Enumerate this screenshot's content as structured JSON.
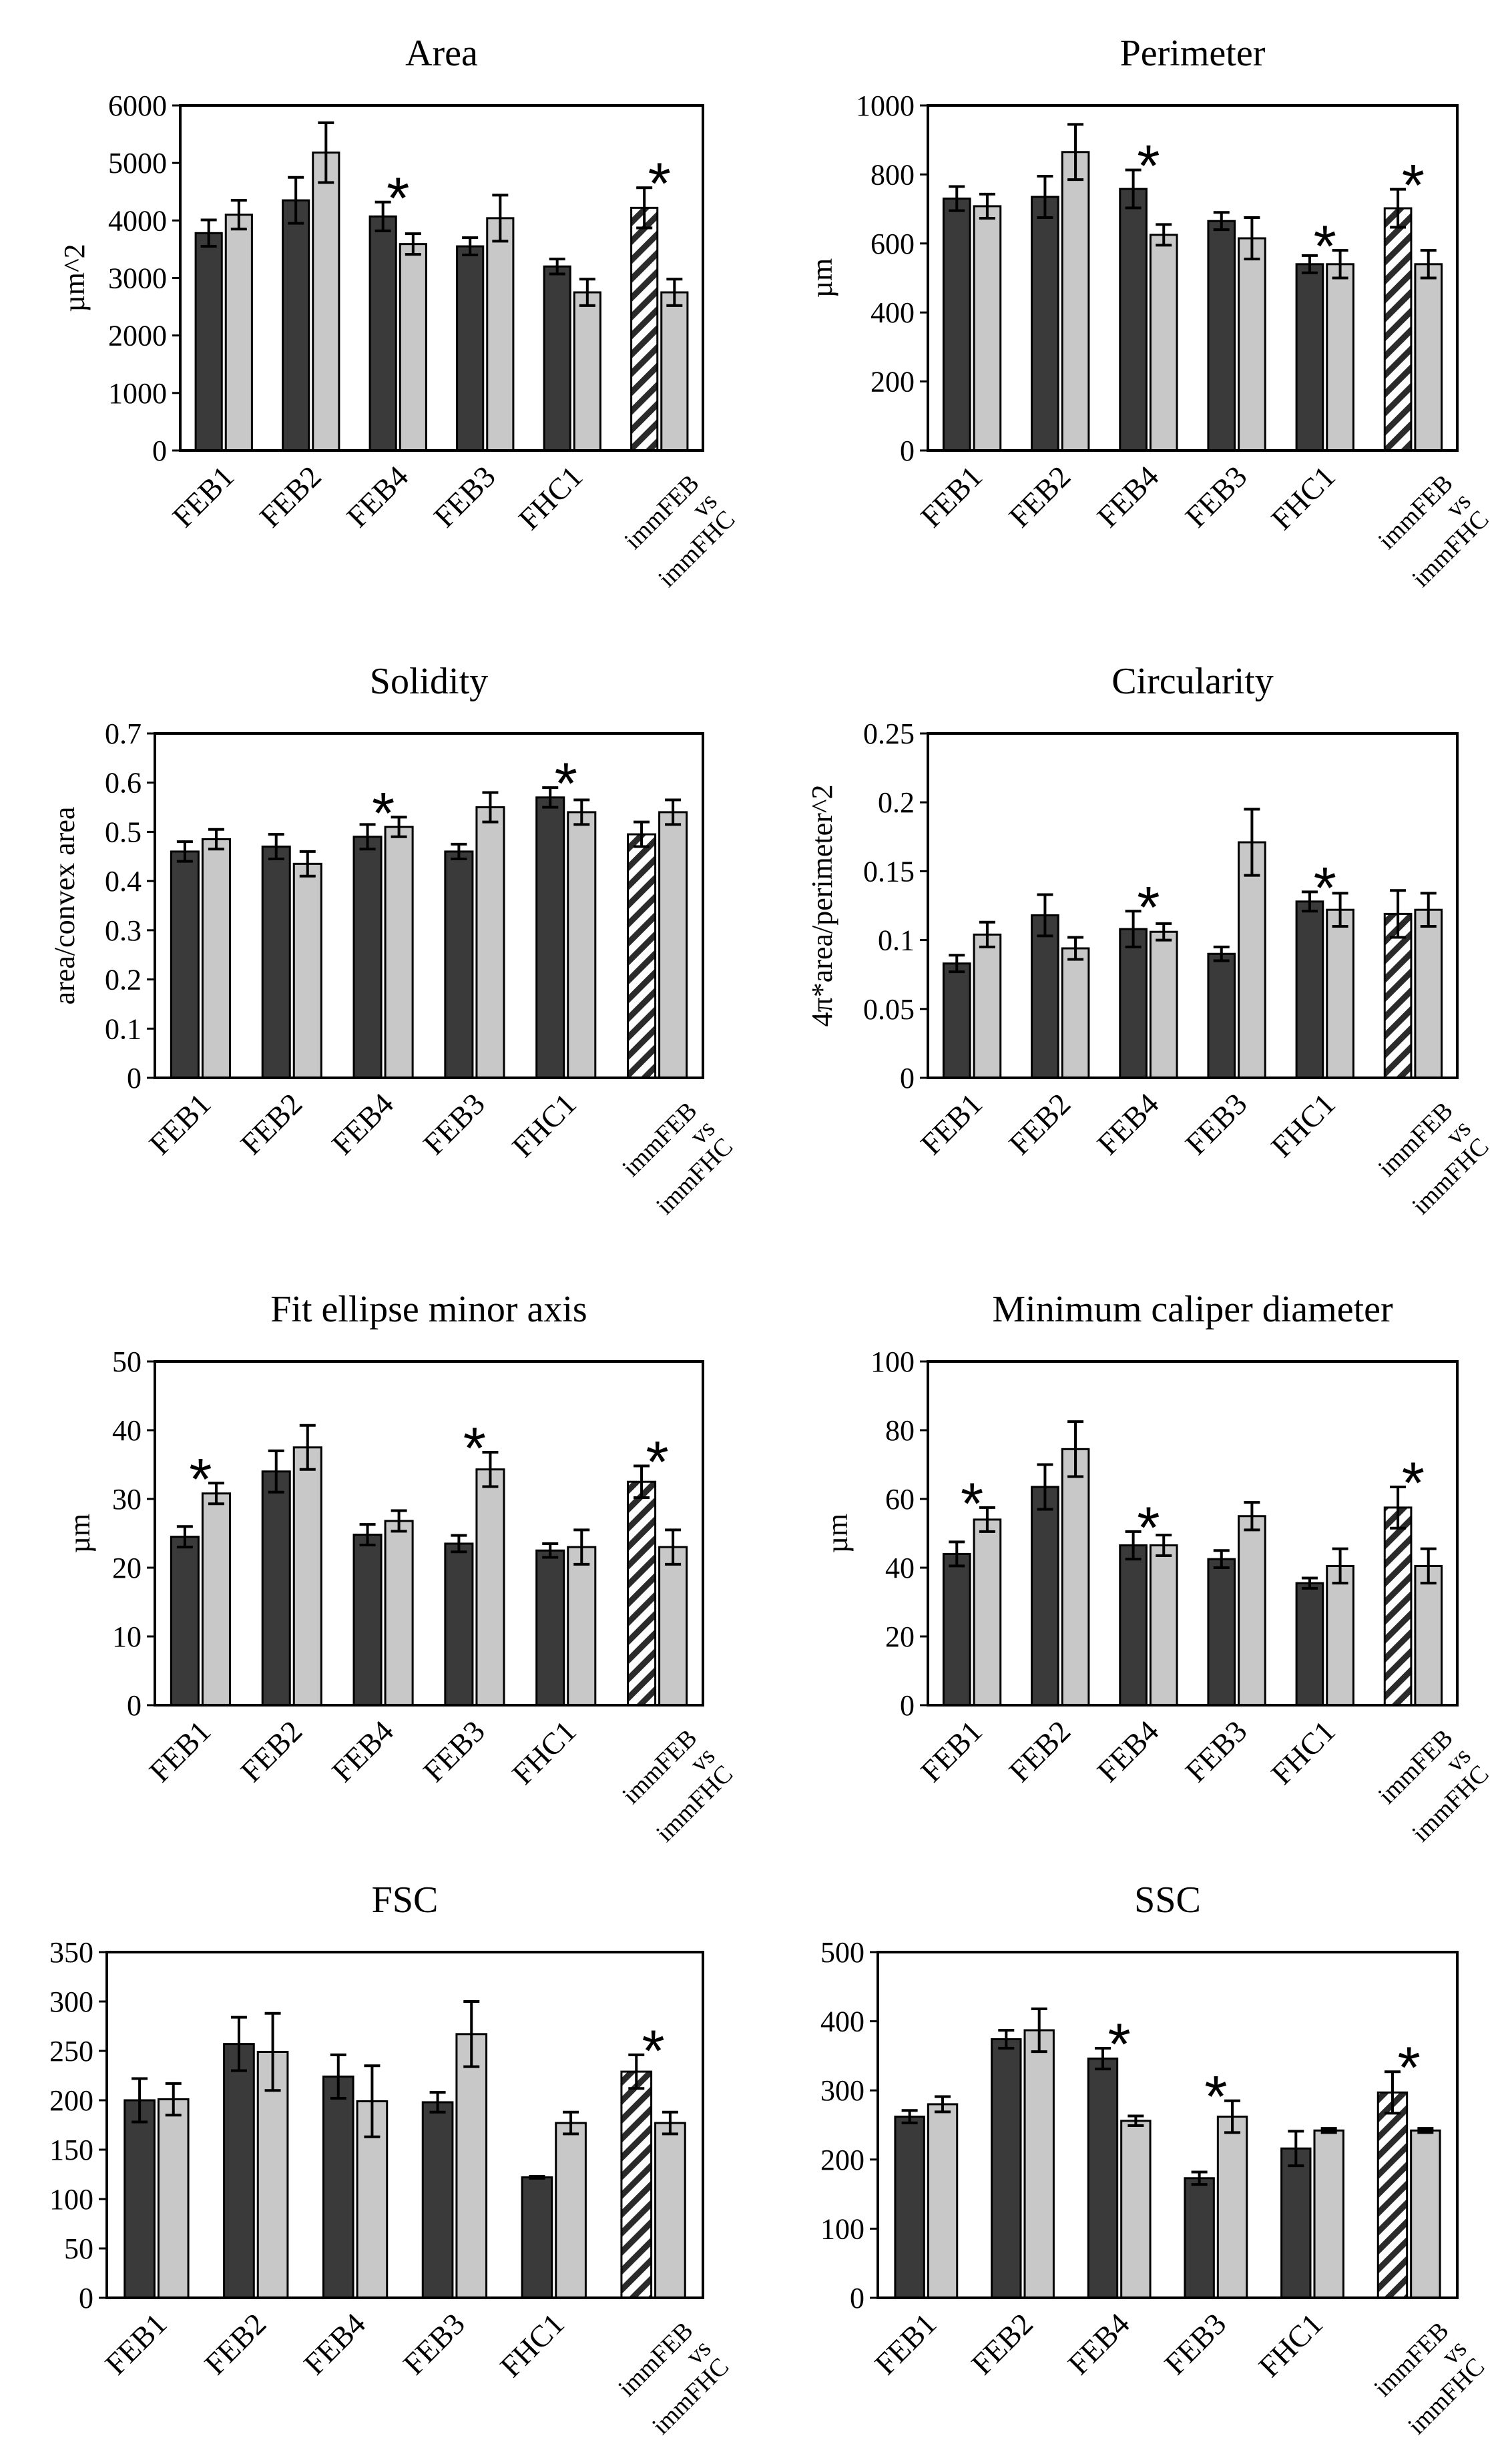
{
  "colors": {
    "dark": "#3a3a3a",
    "light": "#c8c8c8",
    "hatch": "#2a2a2a",
    "axis": "#000000"
  },
  "chart_data": [
    {
      "type": "bar",
      "title": "Area",
      "ylabel": "µm^2",
      "ylim": [
        0,
        6000
      ],
      "yticks": [
        "0",
        "1000",
        "2000",
        "3000",
        "4000",
        "5000",
        "6000"
      ],
      "categories": [
        "FEB1",
        "FEB2",
        "FEB4",
        "FEB3",
        "FHC1",
        "immFEB vs immFHC"
      ],
      "series": [
        {
          "name": "dark",
          "values": [
            3780,
            4350,
            4070,
            3550,
            3200,
            4220
          ],
          "errors": [
            230,
            400,
            250,
            150,
            130,
            350
          ]
        },
        {
          "name": "light",
          "values": [
            4100,
            5180,
            3590,
            4040,
            2750,
            2750
          ],
          "errors": [
            250,
            520,
            180,
            400,
            230,
            230
          ]
        }
      ],
      "hatched": [
        false,
        false,
        false,
        false,
        false,
        true
      ],
      "stars": [
        false,
        false,
        true,
        false,
        false,
        true
      ]
    },
    {
      "type": "bar",
      "title": "Perimeter",
      "ylabel": "µm",
      "ylim": [
        0,
        1000
      ],
      "yticks": [
        "0",
        "200",
        "400",
        "600",
        "800",
        "1000"
      ],
      "categories": [
        "FEB1",
        "FEB2",
        "FEB4",
        "FEB3",
        "FHC1",
        "immFEB vs immFHC"
      ],
      "series": [
        {
          "name": "dark",
          "values": [
            730,
            735,
            758,
            665,
            540,
            702
          ],
          "errors": [
            35,
            60,
            55,
            25,
            25,
            55
          ]
        },
        {
          "name": "light",
          "values": [
            708,
            865,
            625,
            615,
            540,
            540
          ],
          "errors": [
            35,
            80,
            30,
            60,
            40,
            40
          ]
        }
      ],
      "hatched": [
        false,
        false,
        false,
        false,
        false,
        true
      ],
      "stars": [
        false,
        false,
        true,
        false,
        true,
        true
      ]
    },
    {
      "type": "bar",
      "title": "Solidity",
      "ylabel": "area/convex area",
      "ylim": [
        0,
        0.7
      ],
      "yticks": [
        "0",
        "0.1",
        "0.2",
        "0.3",
        "0.4",
        "0.5",
        "0.6",
        "0.7"
      ],
      "categories": [
        "FEB1",
        "FEB2",
        "FEB4",
        "FEB3",
        "FHC1",
        "immFEB vs immFHC"
      ],
      "series": [
        {
          "name": "dark",
          "values": [
            0.46,
            0.47,
            0.49,
            0.46,
            0.57,
            0.495
          ],
          "errors": [
            0.02,
            0.025,
            0.025,
            0.015,
            0.02,
            0.025
          ]
        },
        {
          "name": "light",
          "values": [
            0.485,
            0.435,
            0.51,
            0.55,
            0.54,
            0.54
          ],
          "errors": [
            0.02,
            0.025,
            0.02,
            0.03,
            0.025,
            0.025
          ]
        }
      ],
      "hatched": [
        false,
        false,
        false,
        false,
        false,
        true
      ],
      "stars": [
        false,
        false,
        true,
        false,
        true,
        false
      ]
    },
    {
      "type": "bar",
      "title": "Circularity",
      "ylabel": "4π*area/perimeter^2",
      "ylim": [
        0,
        0.25
      ],
      "yticks": [
        "0",
        "0.05",
        "0.1",
        "0.15",
        "0.2",
        "0.25"
      ],
      "categories": [
        "FEB1",
        "FEB2",
        "FEB4",
        "FEB3",
        "FHC1",
        "immFEB vs immFHC"
      ],
      "series": [
        {
          "name": "dark",
          "values": [
            0.083,
            0.118,
            0.108,
            0.09,
            0.128,
            0.119
          ],
          "errors": [
            0.006,
            0.015,
            0.013,
            0.005,
            0.007,
            0.017
          ]
        },
        {
          "name": "light",
          "values": [
            0.104,
            0.094,
            0.106,
            0.171,
            0.122,
            0.122
          ],
          "errors": [
            0.009,
            0.008,
            0.006,
            0.024,
            0.012,
            0.012
          ]
        }
      ],
      "hatched": [
        false,
        false,
        false,
        false,
        false,
        true
      ],
      "stars": [
        false,
        false,
        true,
        false,
        true,
        false
      ]
    },
    {
      "type": "bar",
      "title": "Fit ellipse minor axis",
      "ylabel": "µm",
      "ylim": [
        0,
        50
      ],
      "yticks": [
        "0",
        "10",
        "20",
        "30",
        "40",
        "50"
      ],
      "categories": [
        "FEB1",
        "FEB2",
        "FEB4",
        "FEB3",
        "FHC1",
        "immFEB vs immFHC"
      ],
      "series": [
        {
          "name": "dark",
          "values": [
            24.5,
            34,
            24.8,
            23.5,
            22.5,
            32.5
          ],
          "errors": [
            1.5,
            3,
            1.5,
            1.2,
            1,
            2.3
          ]
        },
        {
          "name": "light",
          "values": [
            30.8,
            37.5,
            26.8,
            34.3,
            23,
            23
          ],
          "errors": [
            1.5,
            3.2,
            1.5,
            2.5,
            2.5,
            2.5
          ]
        }
      ],
      "hatched": [
        false,
        false,
        false,
        false,
        false,
        true
      ],
      "stars": [
        true,
        false,
        false,
        true,
        false,
        true
      ]
    },
    {
      "type": "bar",
      "title": "Minimum caliper diameter",
      "ylabel": "µm",
      "ylim": [
        0,
        100
      ],
      "yticks": [
        "0",
        "20",
        "40",
        "60",
        "80",
        "100"
      ],
      "categories": [
        "FEB1",
        "FEB2",
        "FEB4",
        "FEB3",
        "FHC1",
        "immFEB vs immFHC"
      ],
      "series": [
        {
          "name": "dark",
          "values": [
            44,
            63.5,
            46.5,
            42.5,
            35.5,
            57.5
          ],
          "errors": [
            3.5,
            6.5,
            4,
            2.5,
            1.5,
            6
          ]
        },
        {
          "name": "light",
          "values": [
            54,
            74.5,
            46.5,
            55,
            40.5,
            40.5
          ],
          "errors": [
            3.5,
            8,
            3,
            4,
            5,
            5
          ]
        }
      ],
      "hatched": [
        false,
        false,
        false,
        false,
        false,
        true
      ],
      "stars": [
        true,
        false,
        true,
        false,
        false,
        true
      ]
    },
    {
      "type": "bar",
      "title": "FSC",
      "ylabel": "",
      "ylim": [
        0,
        350
      ],
      "yticks": [
        "0",
        "50",
        "100",
        "150",
        "200",
        "250",
        "300",
        "350"
      ],
      "categories": [
        "FEB1",
        "FEB2",
        "FEB4",
        "FEB3",
        "FHC1",
        "immFEB vs immFHC"
      ],
      "series": [
        {
          "name": "dark",
          "values": [
            200,
            257,
            224,
            198,
            122,
            229
          ],
          "errors": [
            22,
            27,
            22,
            10,
            1,
            17
          ]
        },
        {
          "name": "light",
          "values": [
            201,
            249,
            199,
            267,
            177,
            177
          ],
          "errors": [
            16,
            39,
            36,
            33,
            11,
            11
          ]
        }
      ],
      "hatched": [
        false,
        false,
        false,
        false,
        false,
        true
      ],
      "stars": [
        false,
        false,
        false,
        false,
        false,
        true
      ]
    },
    {
      "type": "bar",
      "title": "SSC",
      "ylabel": "",
      "ylim": [
        0,
        500
      ],
      "yticks": [
        "0",
        "100",
        "200",
        "300",
        "400",
        "500"
      ],
      "categories": [
        "FEB1",
        "FEB2",
        "FEB4",
        "FEB3",
        "FHC1",
        "immFEB vs immFHC"
      ],
      "series": [
        {
          "name": "dark",
          "values": [
            262,
            374,
            346,
            173,
            216,
            297
          ],
          "errors": [
            9,
            13,
            15,
            9,
            25,
            30
          ]
        },
        {
          "name": "light",
          "values": [
            280,
            387,
            256,
            262,
            242,
            242
          ],
          "errors": [
            11,
            31,
            7,
            23,
            3,
            3
          ]
        }
      ],
      "hatched": [
        false,
        false,
        false,
        false,
        false,
        true
      ],
      "stars": [
        false,
        false,
        true,
        true,
        false,
        true
      ]
    }
  ]
}
